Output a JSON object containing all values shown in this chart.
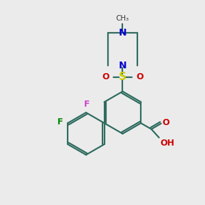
{
  "background_color": "#ebebeb",
  "bond_color": "#2d6b5e",
  "bond_width": 1.6,
  "N_color": "#0000cc",
  "O_color": "#cc0000",
  "S_color": "#cccc00",
  "F_magenta_color": "#cc44cc",
  "F_green_color": "#008800",
  "font_size": 9,
  "xlim": [
    0,
    10
  ],
  "ylim": [
    0,
    10
  ]
}
